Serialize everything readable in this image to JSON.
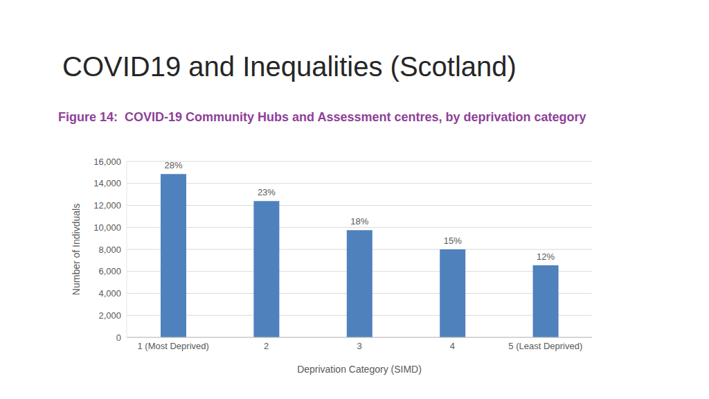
{
  "slide_title": "COVID19 and Inequalities (Scotland)",
  "chart_data": {
    "type": "bar",
    "title": "Figure 14:  COVID-19 Community Hubs and Assessment centres, by deprivation category",
    "x_label": "Deprivation Category (SIMD)",
    "y_label": "Number of Indivduals",
    "categories": [
      "1 (Most Deprived)",
      "2",
      "3",
      "4",
      "5 (Least Deprived)"
    ],
    "values": [
      14850,
      12400,
      9750,
      8000,
      6550
    ],
    "bar_labels": [
      "28%",
      "23%",
      "18%",
      "15%",
      "12%"
    ],
    "color": "#4f81bd",
    "ylim": [
      0,
      16000
    ],
    "yticks": [
      0,
      {
        "value": 2000,
        "label": "2,000"
      },
      {
        "value": 4000,
        "label": "4,000"
      },
      {
        "value": 6000,
        "label": "6,000"
      },
      {
        "value": 8000,
        "label": "8,000"
      },
      {
        "value": 10000,
        "label": "10,000"
      },
      {
        "value": 12000,
        "label": "12,000"
      },
      {
        "value": 14000,
        "label": "14,000"
      },
      {
        "value": 16000,
        "label": "16,000"
      }
    ],
    "grid": true
  }
}
